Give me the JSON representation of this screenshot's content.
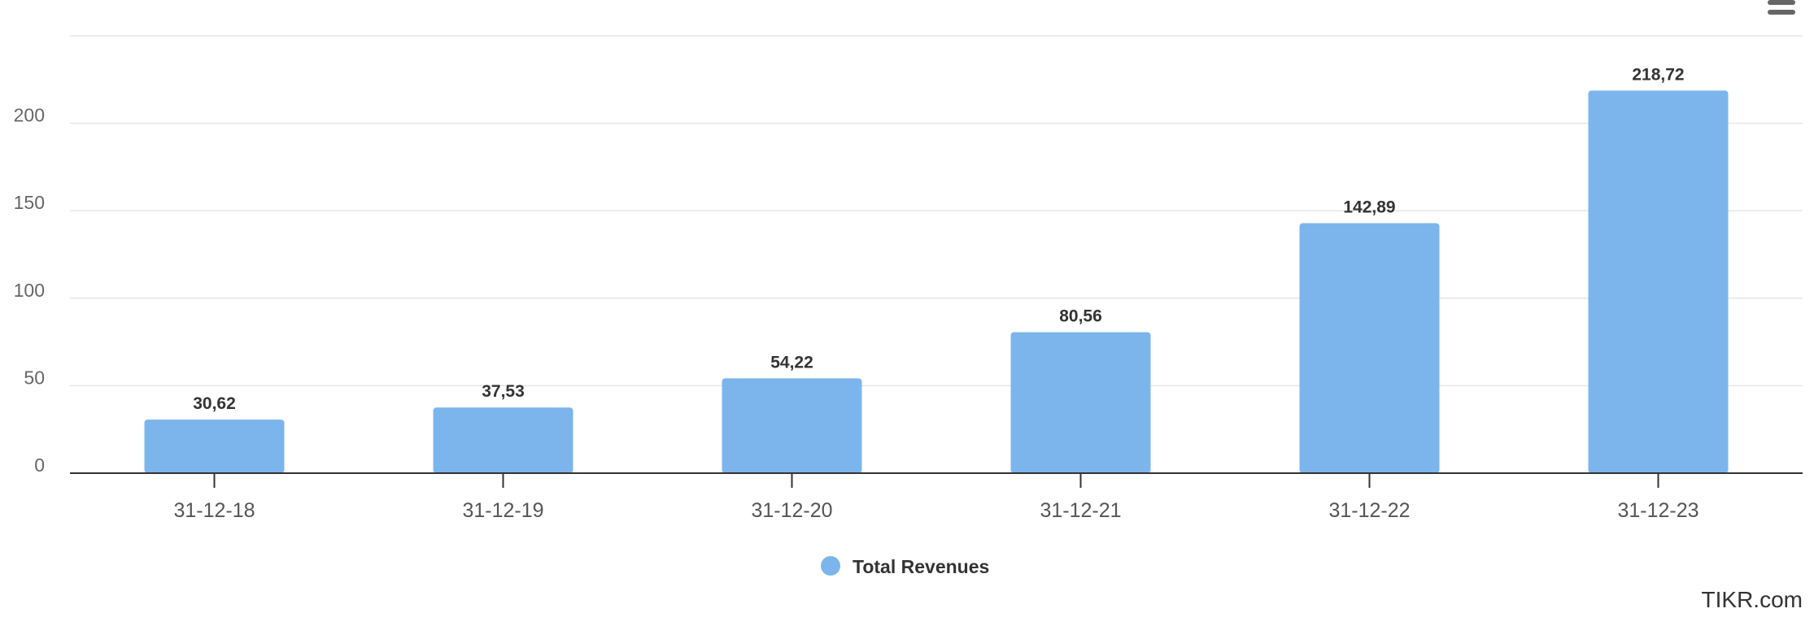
{
  "chart_data": {
    "type": "bar",
    "title": "",
    "xlabel": "",
    "ylabel": "",
    "categories": [
      "31-12-18",
      "31-12-19",
      "31-12-20",
      "31-12-21",
      "31-12-22",
      "31-12-23"
    ],
    "series": [
      {
        "name": "Total Revenues",
        "values": [
          30.62,
          37.53,
          54.22,
          80.56,
          142.89,
          218.72
        ],
        "labels": [
          "30,62",
          "37,53",
          "54,22",
          "80,56",
          "142,89",
          "218,72"
        ],
        "color": "#7cb5ec"
      }
    ],
    "ylim": [
      0,
      250
    ],
    "yticks": [
      0,
      50,
      100,
      150,
      200
    ],
    "grid": true,
    "legend": "bottom-center"
  },
  "credit": "TIKR.com",
  "menu_icon": "hamburger-menu-icon"
}
